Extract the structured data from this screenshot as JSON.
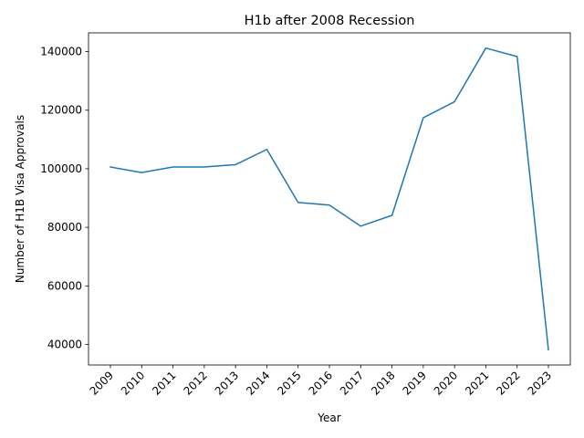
{
  "chart_data": {
    "type": "line",
    "title": "H1b after 2008 Recession",
    "xlabel": "Year",
    "ylabel": "Number of H1B Visa Approvals",
    "x": [
      "2009",
      "2010",
      "2011",
      "2012",
      "2013",
      "2014",
      "2015",
      "2016",
      "2017",
      "2018",
      "2019",
      "2020",
      "2021",
      "2022",
      "2023"
    ],
    "series": [
      {
        "color": "#1f77b4",
        "values": [
          100600,
          98700,
          100600,
          100600,
          101400,
          106600,
          88500,
          87600,
          80400,
          84100,
          117400,
          122900,
          141200,
          138300,
          38200
        ]
      }
    ],
    "y_ticks": [
      40000,
      60000,
      80000,
      100000,
      120000,
      140000
    ],
    "ylim": [
      33000,
      146400
    ],
    "grid": false,
    "legend": "none"
  }
}
